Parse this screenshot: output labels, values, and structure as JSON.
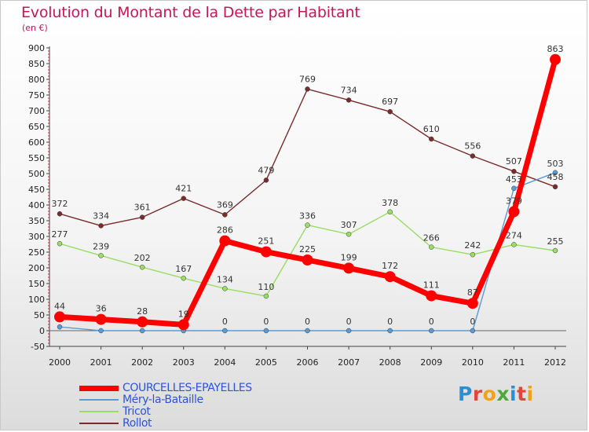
{
  "chart_data": {
    "type": "line",
    "title": "Evolution du Montant de la Dette par Habitant",
    "subtitle": "(en €)",
    "xlabel": "",
    "ylabel": "",
    "ylim": [
      -50,
      900
    ],
    "yticks": [
      "900",
      "850",
      "800",
      "750",
      "700",
      "650",
      "600",
      "550",
      "500",
      "450",
      "400",
      "350",
      "300",
      "250",
      "200",
      "150",
      "100",
      "50",
      "0",
      "-50"
    ],
    "categories": [
      "2000",
      "2001",
      "2002",
      "2003",
      "2004",
      "2005",
      "2006",
      "2007",
      "2008",
      "2009",
      "2010",
      "2011",
      "2012"
    ],
    "series": [
      {
        "name": "COURCELLES-EPAYELLES",
        "color": "#ff0000",
        "values": [
          44,
          36,
          28,
          19,
          286,
          251,
          225,
          199,
          172,
          111,
          87,
          379,
          863
        ],
        "labels": [
          "44",
          "36",
          "28",
          "19",
          "286",
          "251",
          "225",
          "199",
          "172",
          "111",
          "87",
          "379",
          "863"
        ]
      },
      {
        "name": "Méry-la-Bataille",
        "color": "#5b9bd5",
        "values": [
          12,
          0,
          0,
          0,
          0,
          0,
          0,
          0,
          0,
          0,
          0,
          453,
          503
        ],
        "labels": [
          "",
          "",
          "",
          "",
          "0",
          "0",
          "0",
          "0",
          "0",
          "0",
          "0",
          "453",
          "503"
        ]
      },
      {
        "name": "Tricot",
        "color": "#99dd66",
        "values": [
          277,
          239,
          202,
          167,
          134,
          110,
          336,
          307,
          378,
          266,
          242,
          274,
          255
        ],
        "labels": [
          "277",
          "239",
          "202",
          "167",
          "134",
          "110",
          "336",
          "307",
          "378",
          "266",
          "242",
          "274",
          "255"
        ]
      },
      {
        "name": "Rollot",
        "color": "#7a2b2b",
        "values": [
          372,
          334,
          361,
          421,
          369,
          479,
          769,
          734,
          697,
          610,
          556,
          507,
          458
        ],
        "labels": [
          "372",
          "334",
          "361",
          "421",
          "369",
          "479",
          "769",
          "734",
          "697",
          "610",
          "556",
          "507",
          "458"
        ]
      }
    ],
    "legend_position": "bottom-left",
    "grid": false
  },
  "brand": {
    "text": "Proxiti",
    "letter_colors": [
      "#2a8fd6",
      "#e2453a",
      "#f0a21d",
      "#4aa83d",
      "#2a8fd6",
      "#e2453a",
      "#f0a21d"
    ]
  }
}
